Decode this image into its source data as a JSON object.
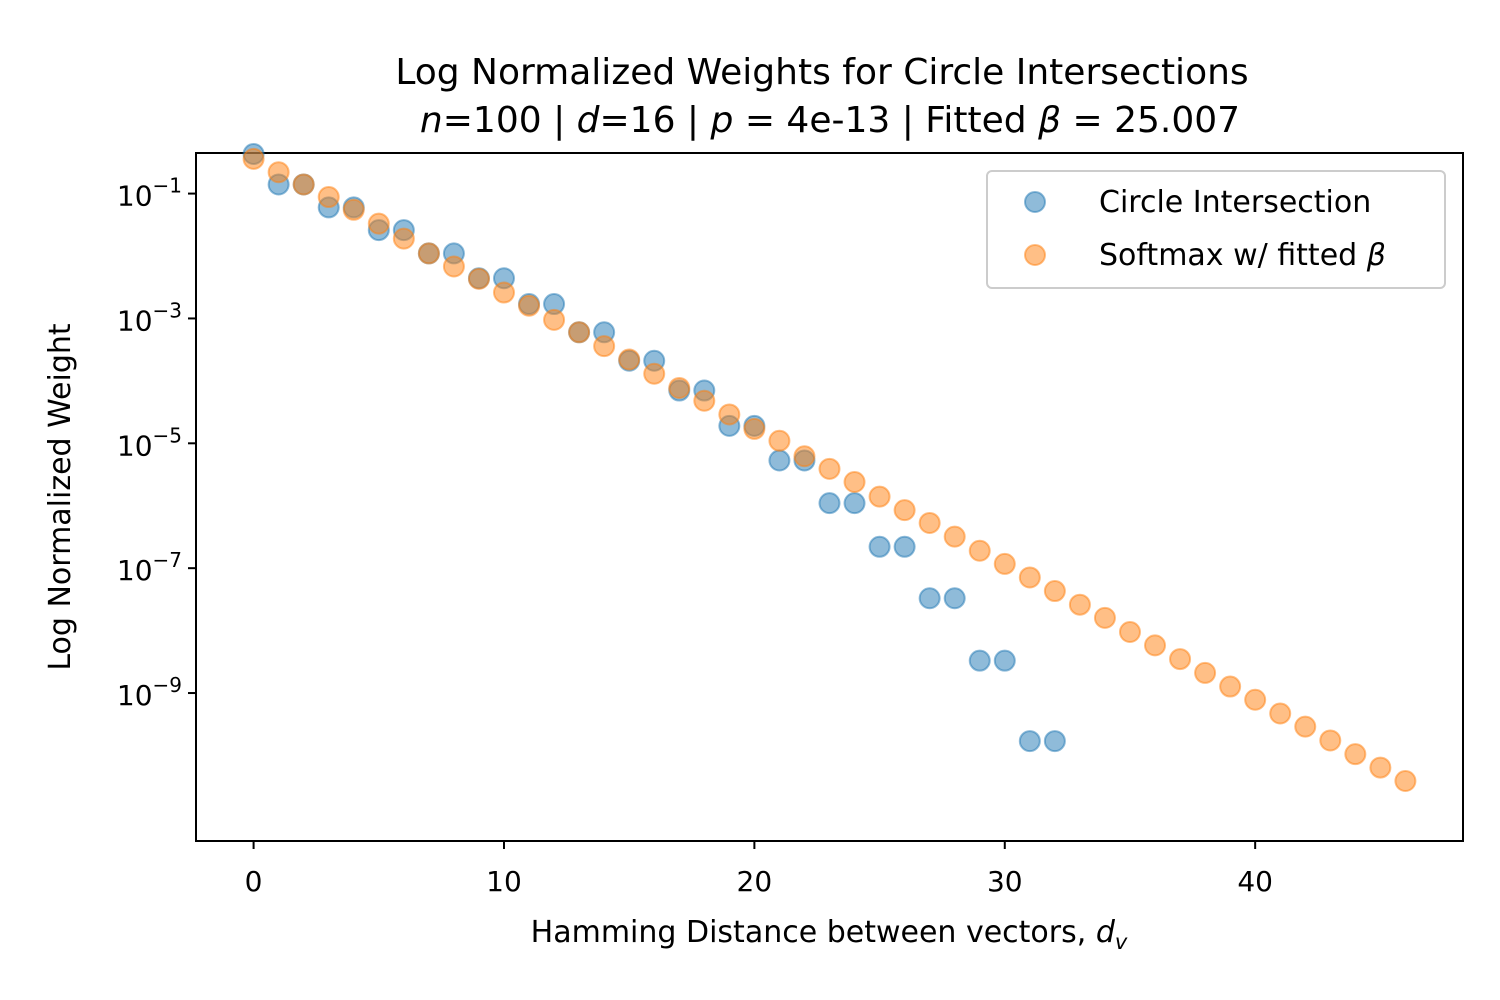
{
  "chart_data": {
    "type": "scatter",
    "title": "Log Normalized Weights for Circle Intersections",
    "subtitle": {
      "n_sym": "n",
      "n_val": "=100 | ",
      "d_sym": "d",
      "d_val": "=16 | ",
      "p_sym": "p",
      "p_val": " = 4e-13 | Fitted ",
      "beta_sym": "β",
      "beta_val": " = 25.007"
    },
    "xlabel": {
      "text": "Hamming Distance between vectors, ",
      "sym": "d",
      "sub": "v"
    },
    "ylabel": "Log Normalized Weight",
    "xlim": [
      -2.3,
      48.3
    ],
    "ylim_log10": [
      -11.37,
      -0.35
    ],
    "yscale": "log",
    "grid": false,
    "legend_position": "top-right",
    "x_ticks": [
      0,
      10,
      20,
      30,
      40
    ],
    "y_ticks": [
      {
        "exp": -1,
        "base": "10",
        "power": "−1"
      },
      {
        "exp": -3,
        "base": "10",
        "power": "−3"
      },
      {
        "exp": -5,
        "base": "10",
        "power": "−5"
      },
      {
        "exp": -7,
        "base": "10",
        "power": "−7"
      },
      {
        "exp": -9,
        "base": "10",
        "power": "−9"
      }
    ],
    "series": [
      {
        "name": "Circle Intersection",
        "color": "#1f77b4",
        "x": [
          0,
          1,
          2,
          3,
          4,
          5,
          6,
          7,
          8,
          9,
          10,
          11,
          12,
          13,
          14,
          15,
          16,
          17,
          18,
          19,
          20,
          21,
          22,
          23,
          24,
          25,
          26,
          27,
          28,
          29,
          30,
          31,
          32
        ],
        "y": [
          0.43,
          0.14,
          0.14,
          0.06,
          0.06,
          0.026,
          0.026,
          0.011,
          0.011,
          0.0044,
          0.0044,
          0.0017,
          0.0017,
          0.0006,
          0.0006,
          0.00021,
          0.00021,
          7e-05,
          7e-05,
          1.9e-05,
          1.9e-05,
          5.3e-06,
          5.3e-06,
          1.1e-06,
          1.1e-06,
          2.2e-07,
          2.2e-07,
          3.3e-08,
          3.3e-08,
          3.3e-09,
          3.3e-09,
          1.7e-10,
          1.7e-10
        ]
      },
      {
        "name": "Softmax w/ fitted ",
        "name_sym": "β",
        "color": "#ff7f0e",
        "x": [
          0,
          1,
          2,
          3,
          4,
          5,
          6,
          7,
          8,
          9,
          10,
          11,
          12,
          13,
          14,
          15,
          16,
          17,
          18,
          19,
          20,
          21,
          22,
          23,
          24,
          25,
          26,
          27,
          28,
          29,
          30,
          31,
          32,
          33,
          34,
          35,
          36,
          37,
          38,
          39,
          40,
          41,
          42,
          43,
          44,
          45,
          46
        ],
        "y": [
          0.36,
          0.22,
          0.14,
          0.088,
          0.055,
          0.033,
          0.019,
          0.011,
          0.0068,
          0.0043,
          0.0026,
          0.0016,
          0.00095,
          0.0006,
          0.00036,
          0.00022,
          0.00013,
          7.7e-05,
          4.8e-05,
          2.9e-05,
          1.7e-05,
          1.1e-05,
          6.2e-06,
          3.9e-06,
          2.4e-06,
          1.4e-06,
          8.5e-07,
          5.3e-07,
          3.2e-07,
          1.9e-07,
          1.17e-07,
          7.1e-08,
          4.3e-08,
          2.6e-08,
          1.6e-08,
          9.5e-09,
          5.8e-09,
          3.5e-09,
          2.1e-09,
          1.27e-09,
          7.8e-10,
          4.7e-10,
          2.9e-10,
          1.74e-10,
          1.05e-10,
          6.4e-11,
          3.9e-11
        ]
      }
    ]
  }
}
